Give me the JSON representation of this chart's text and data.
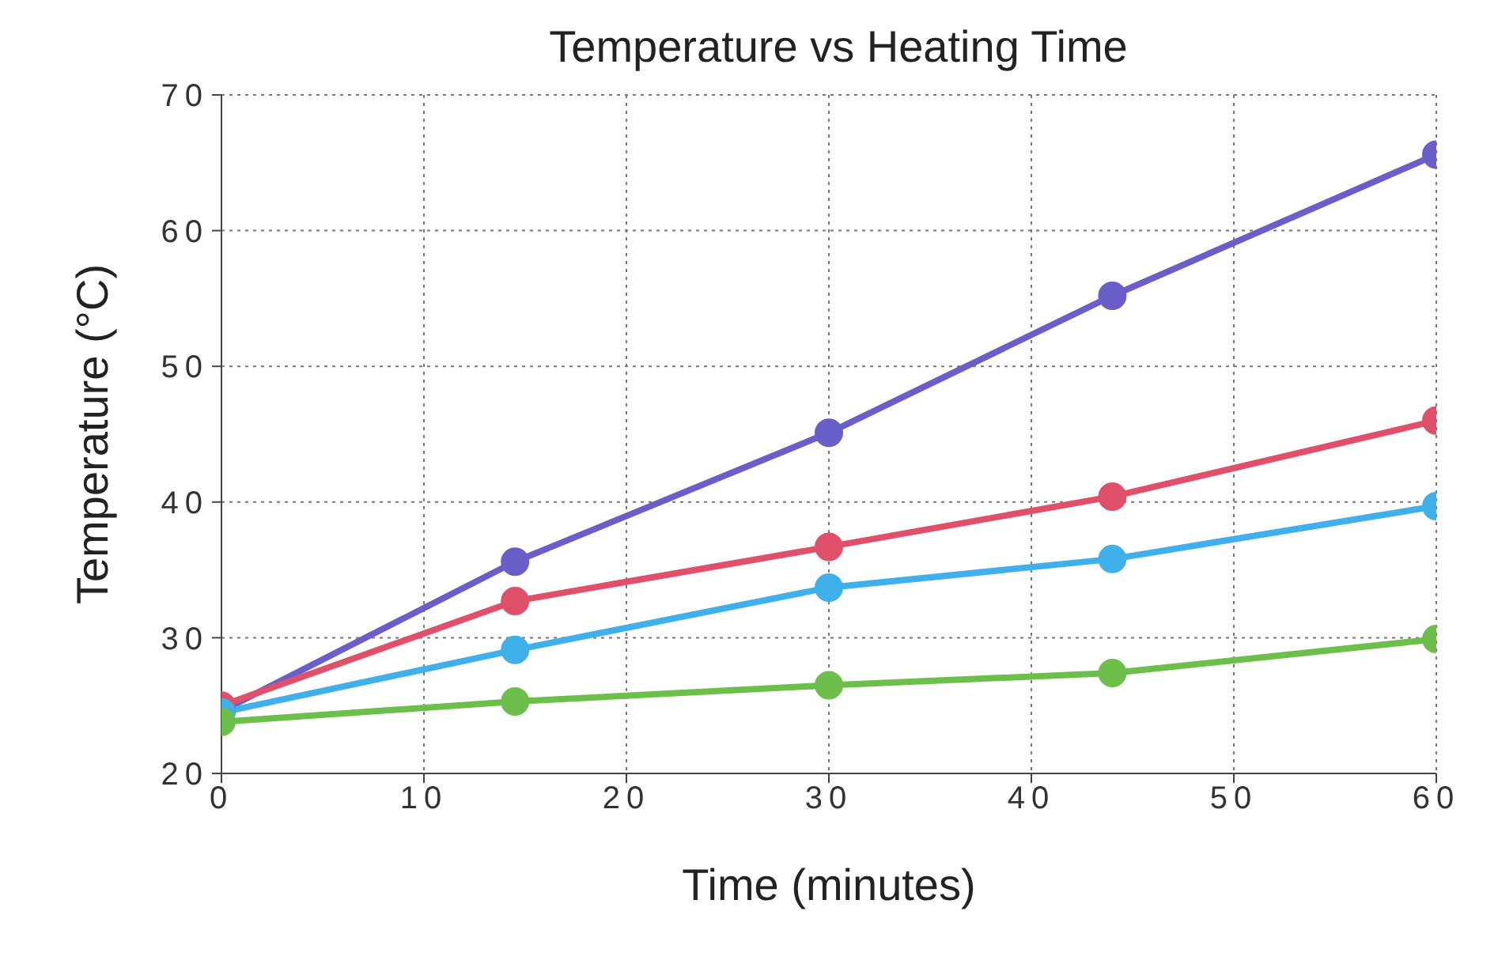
{
  "chart_data": {
    "type": "line",
    "title": "Temperature vs Heating Time",
    "xlabel": "Time (minutes)",
    "ylabel": "Temperature (°C)",
    "x": [
      0,
      14.5,
      30,
      44,
      60
    ],
    "series": [
      {
        "color": "#6a5fc8",
        "values": [
          24.6,
          35.6,
          45.1,
          55.2,
          65.6
        ]
      },
      {
        "color": "#e0506a",
        "values": [
          25,
          32.7,
          36.7,
          40.4,
          46
        ]
      },
      {
        "color": "#3fb0ea",
        "values": [
          24.5,
          29.1,
          33.7,
          35.8,
          39.7
        ]
      },
      {
        "color": "#6cbf4a",
        "values": [
          23.8,
          25.3,
          26.5,
          27.4,
          29.9
        ]
      }
    ],
    "xlim": [
      0,
      60
    ],
    "xticks": [
      0,
      10,
      20,
      30,
      40,
      50,
      60
    ],
    "ylim": [
      20,
      70
    ],
    "yticks": [
      20,
      30,
      40,
      50,
      60,
      70
    ],
    "grid": true,
    "marker": "circle",
    "line_style": "solid"
  }
}
